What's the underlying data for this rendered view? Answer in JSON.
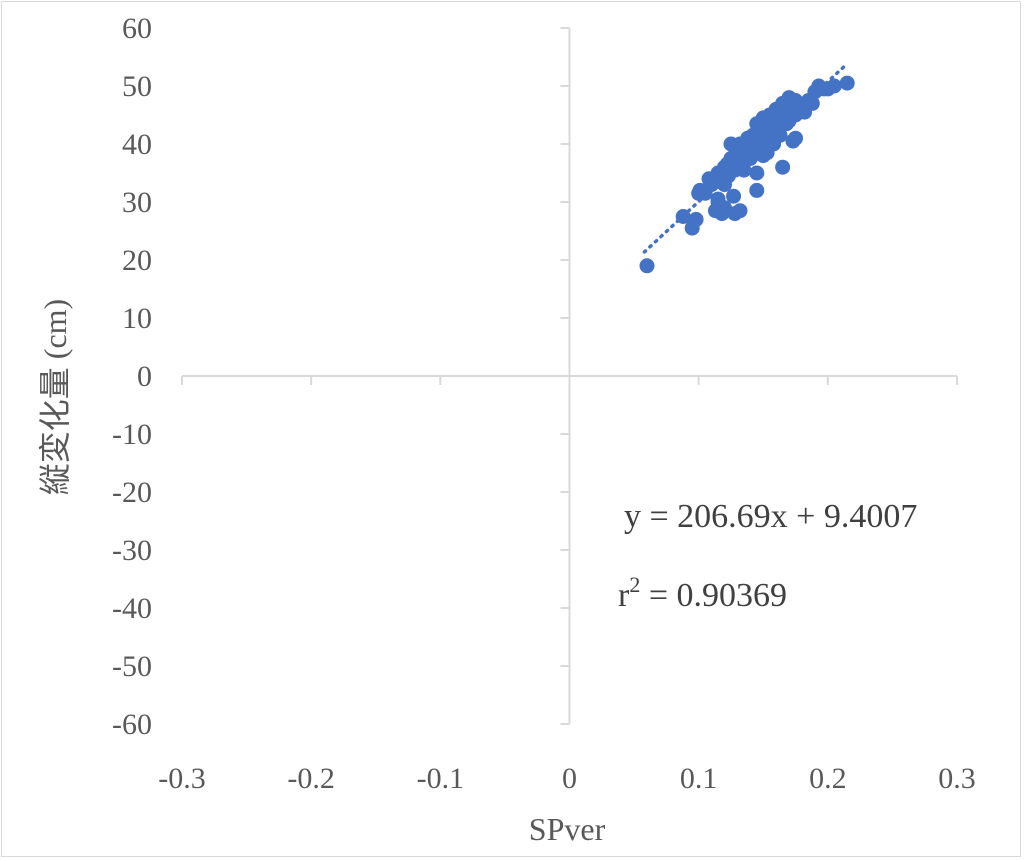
{
  "chart_data": {
    "type": "scatter",
    "title": "",
    "xlabel": "SPver",
    "ylabel": "縦変化量 (cm)",
    "xlim": [
      -0.3,
      0.3
    ],
    "ylim": [
      -60,
      60
    ],
    "x_ticks": [
      -0.3,
      -0.2,
      -0.1,
      0,
      0.1,
      0.2,
      0.3
    ],
    "x_tick_labels": [
      "-0.3",
      "-0.2",
      "-0.1",
      "0",
      "0.1",
      "0.2",
      "0.3"
    ],
    "y_ticks": [
      60,
      50,
      40,
      30,
      20,
      10,
      0,
      -10,
      -20,
      -30,
      -40,
      -50,
      -60
    ],
    "y_tick_labels": [
      "60",
      "50",
      "40",
      "30",
      "20",
      "10",
      "0",
      "-10",
      "-20",
      "-30",
      "-40",
      "-50",
      "-60"
    ],
    "grid": false,
    "legend": "none",
    "marker_color": "#4472c4",
    "trendline": {
      "type": "linear",
      "slope": 206.69,
      "intercept": 9.4007,
      "x_range": [
        0.058,
        0.215
      ],
      "style": "dotted",
      "equation_label": "y = 206.69x + 9.4007",
      "r2_prefix": "r",
      "r2_exponent": "2",
      "r2_value_text": " = 0.90369"
    },
    "series": [
      {
        "x": [
          0.06,
          0.088,
          0.095,
          0.098,
          0.1,
          0.101,
          0.105,
          0.108,
          0.11,
          0.113,
          0.115,
          0.115,
          0.118,
          0.12,
          0.12,
          0.122,
          0.123,
          0.125,
          0.125,
          0.127,
          0.128,
          0.128,
          0.13,
          0.13,
          0.132,
          0.133,
          0.135,
          0.135,
          0.137,
          0.138,
          0.14,
          0.14,
          0.142,
          0.143,
          0.145,
          0.145,
          0.147,
          0.148,
          0.15,
          0.15,
          0.152,
          0.153,
          0.155,
          0.155,
          0.157,
          0.158,
          0.16,
          0.16,
          0.162,
          0.163,
          0.165,
          0.165,
          0.167,
          0.168,
          0.17,
          0.17,
          0.172,
          0.173,
          0.175,
          0.175,
          0.177,
          0.18,
          0.182,
          0.185,
          0.188,
          0.19,
          0.193,
          0.197,
          0.2,
          0.205,
          0.215,
          0.128,
          0.12,
          0.145,
          0.165,
          0.175,
          0.115,
          0.132,
          0.158,
          0.15
        ],
        "y": [
          19.0,
          27.5,
          25.5,
          27.0,
          31.5,
          32.0,
          31.5,
          34.0,
          33.0,
          28.5,
          30.0,
          35.0,
          28.0,
          36.0,
          33.0,
          36.5,
          34.5,
          37.5,
          40.0,
          31.0,
          38.0,
          35.5,
          39.0,
          36.5,
          40.0,
          37.0,
          38.5,
          35.5,
          39.5,
          41.0,
          40.0,
          37.5,
          41.5,
          39.0,
          43.5,
          32.0,
          42.0,
          40.5,
          44.5,
          41.0,
          43.0,
          38.5,
          45.0,
          42.5,
          44.0,
          40.0,
          46.0,
          43.0,
          45.5,
          41.5,
          47.0,
          36.0,
          45.0,
          43.5,
          48.0,
          44.0,
          46.0,
          40.5,
          47.5,
          45.0,
          47.0,
          46.0,
          45.5,
          47.5,
          47.0,
          49.0,
          50.0,
          49.5,
          49.5,
          50.0,
          50.5,
          28.0,
          29.0,
          35.0,
          44.0,
          41.0,
          30.5,
          28.5,
          41.5,
          38.0
        ]
      }
    ]
  }
}
